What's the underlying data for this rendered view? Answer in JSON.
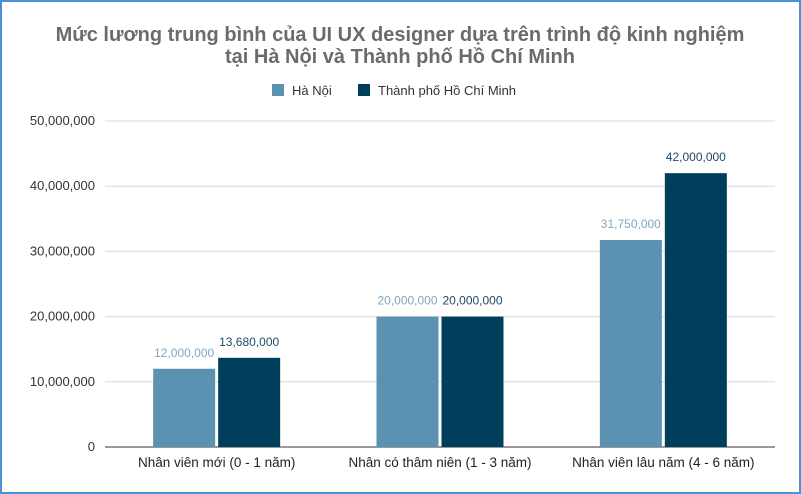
{
  "chart_data": {
    "type": "bar",
    "title_line1": "Mức lương trung bình của UI UX designer dựa trên trình độ kinh nghiệm",
    "title_line2": "tại Hà Nội và Thành phố Hồ Chí Minh",
    "categories": [
      "Nhân viên mới (0 - 1 năm)",
      "Nhân có thâm niên (1 - 3 năm)",
      "Nhân viên lâu năm (4 - 6 năm)"
    ],
    "series": [
      {
        "name": "Hà Nội",
        "color": "#5b92b1",
        "label_color": "#7fa7c0",
        "values": [
          12000000,
          20000000,
          31750000
        ],
        "labels": [
          "12,000,000",
          "20,000,000",
          "31,750,000"
        ]
      },
      {
        "name": "Thành phố Hồ Chí Minh",
        "color": "#003f5c",
        "label_color": "#1f4a66",
        "values": [
          13680000,
          20000000,
          42000000
        ],
        "labels": [
          "13,680,000",
          "20,000,000",
          "42,000,000"
        ]
      }
    ],
    "ylim": [
      0,
      50000000
    ],
    "y_ticks": [
      0,
      10000000,
      20000000,
      30000000,
      40000000,
      50000000
    ],
    "y_tick_labels": [
      "0",
      "10,000,000",
      "20,000,000",
      "30,000,000",
      "40,000,000",
      "50,000,000"
    ],
    "legend_position": "top",
    "grid": true
  }
}
